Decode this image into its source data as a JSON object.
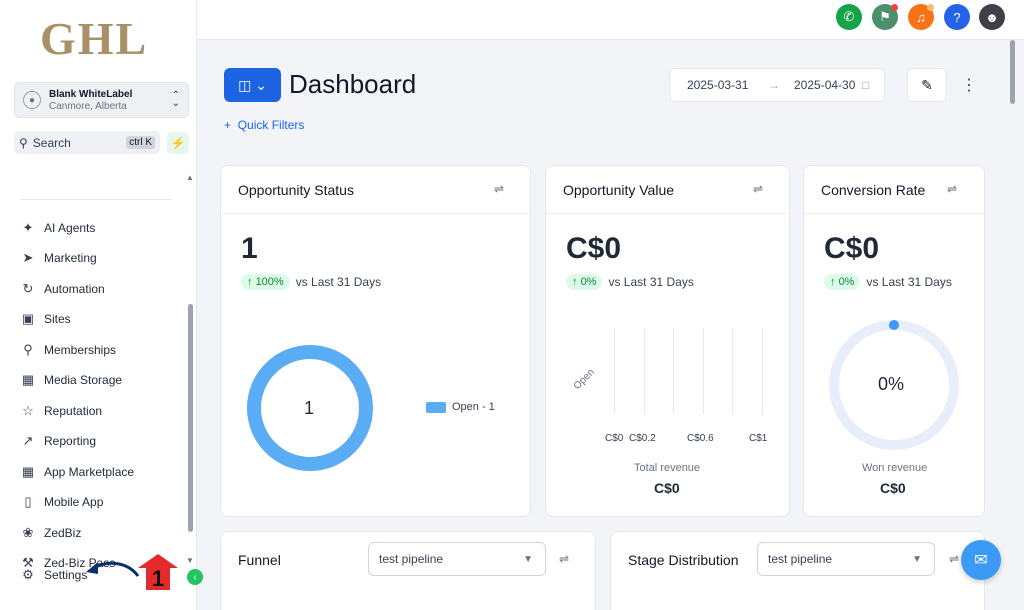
{
  "sidebar": {
    "logo": "GHL",
    "account": {
      "name": "Blank WhiteLabel",
      "location": "Canmore, Alberta"
    },
    "search": {
      "label": "Search",
      "shortcut": "ctrl K"
    },
    "items": [
      {
        "label": "AI Agents",
        "icon": "sparkle-icon"
      },
      {
        "label": "Marketing",
        "icon": "send-icon"
      },
      {
        "label": "Automation",
        "icon": "automation-icon"
      },
      {
        "label": "Sites",
        "icon": "globe-icon"
      },
      {
        "label": "Memberships",
        "icon": "award-icon"
      },
      {
        "label": "Media Storage",
        "icon": "image-icon"
      },
      {
        "label": "Reputation",
        "icon": "star-icon"
      },
      {
        "label": "Reporting",
        "icon": "chart-icon"
      },
      {
        "label": "App Marketplace",
        "icon": "grid-icon"
      },
      {
        "label": "Mobile App",
        "icon": "phone-icon"
      },
      {
        "label": "ZedBiz",
        "icon": "brain-icon"
      },
      {
        "label": "Zed-Biz Pass",
        "icon": "wrench-icon"
      }
    ],
    "settings_label": "Settings",
    "annotation_number": "1"
  },
  "header": {
    "icons": [
      "phone-icon",
      "megaphone-icon",
      "bell-icon",
      "help-icon",
      "avatar"
    ]
  },
  "dashboard": {
    "title": "Dashboard",
    "quick_filters": "Quick Filters",
    "date_start": "2025-03-31",
    "date_end": "2025-04-30"
  },
  "cards": {
    "opportunity_status": {
      "title": "Opportunity Status",
      "value": "1",
      "delta": "100%",
      "delta_text": "vs Last 31 Days",
      "center": "1",
      "legend": "Open - 1"
    },
    "opportunity_value": {
      "title": "Opportunity Value",
      "value": "C$0",
      "delta": "0%",
      "delta_text": "vs Last 31 Days",
      "footer_label": "Total revenue",
      "footer_value": "C$0"
    },
    "conversion_rate": {
      "title": "Conversion Rate",
      "value": "C$0",
      "delta": "0%",
      "delta_text": "vs Last 31 Days",
      "center": "0%",
      "footer_label": "Won revenue",
      "footer_value": "C$0"
    },
    "funnel": {
      "title": "Funnel",
      "pipeline": "test pipeline"
    },
    "stage_distribution": {
      "title": "Stage Distribution",
      "pipeline": "test pipeline"
    }
  },
  "chart_data": [
    {
      "type": "pie",
      "categories": [
        "Open"
      ],
      "values": [
        1
      ],
      "title": "Opportunity Status",
      "legend": "right",
      "colors": [
        "#5aacf5"
      ]
    },
    {
      "type": "bar",
      "categories": [
        "Open"
      ],
      "values": [
        0
      ],
      "title": "Opportunity Value",
      "xlabel": "Total revenue",
      "x_ticks": [
        "C$0",
        "C$0.2",
        "C$0.6",
        "C$1"
      ],
      "xlim": [
        0,
        1
      ],
      "orientation": "horizontal"
    }
  ]
}
